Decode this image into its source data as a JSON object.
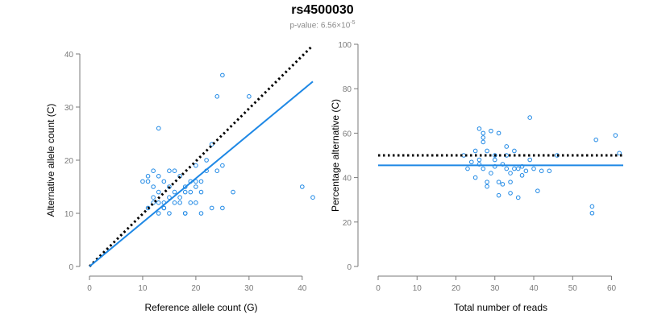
{
  "title": "rs4500030",
  "subtitle": {
    "prefix": "p-value: 6.56×10",
    "exponent": "-5"
  },
  "colors": {
    "points": "#1e88e5",
    "fit_line": "#1e88e5",
    "reference_line": "#000000",
    "axis": "#7a7a7a"
  },
  "chart_data": [
    {
      "type": "scatter",
      "title": "",
      "xlabel": "Reference allele count (G)",
      "ylabel": "Alternative allele count (C)",
      "xlim": [
        0,
        42
      ],
      "ylim": [
        0,
        40
      ],
      "xticks": [
        0,
        10,
        20,
        30,
        40
      ],
      "yticks": [
        0,
        10,
        20,
        30,
        40
      ],
      "points": {
        "x": [
          13,
          24,
          25,
          30,
          10,
          11,
          11,
          12,
          12,
          13,
          13,
          14,
          15,
          15,
          16,
          16,
          17,
          17,
          18,
          18,
          19,
          19,
          20,
          20,
          20,
          21,
          21,
          22,
          23,
          24,
          25,
          13,
          14,
          15,
          16,
          18,
          12,
          13,
          14,
          15,
          17,
          18,
          19,
          20,
          21,
          22,
          23,
          25,
          27,
          40,
          42,
          11,
          12,
          14
        ],
        "y": [
          26,
          32,
          36,
          32,
          16,
          16,
          17,
          15,
          18,
          17,
          14,
          16,
          18,
          15,
          18,
          14,
          17,
          13,
          15,
          14,
          16,
          12,
          19,
          15,
          16,
          14,
          16,
          18,
          23,
          18,
          19,
          12,
          11,
          13,
          12,
          10,
          13,
          10,
          12,
          10,
          12,
          10,
          14,
          12,
          10,
          20,
          11,
          11,
          14,
          15,
          13,
          11,
          12,
          11
        ]
      },
      "lines": [
        {
          "name": "expected",
          "style": "dotted",
          "color": "#000000",
          "x": [
            0,
            42
          ],
          "y": [
            0,
            41.6
          ]
        },
        {
          "name": "fit",
          "style": "solid",
          "color": "#1e88e5",
          "x": [
            0,
            42
          ],
          "y": [
            0,
            34.8
          ]
        }
      ]
    },
    {
      "type": "scatter",
      "title": "",
      "xlabel": "Total number of reads",
      "ylabel": "Percentage alternative (C)",
      "xlim": [
        0,
        63
      ],
      "ylim": [
        0,
        100
      ],
      "xticks": [
        0,
        10,
        20,
        30,
        40,
        50,
        60
      ],
      "yticks": [
        0,
        20,
        40,
        60,
        80,
        100
      ],
      "points": {
        "x": [
          22,
          23,
          24,
          25,
          25,
          26,
          26,
          27,
          27,
          27,
          28,
          28,
          28,
          29,
          29,
          30,
          30,
          31,
          31,
          31,
          32,
          32,
          33,
          33,
          33,
          34,
          34,
          34,
          35,
          35,
          36,
          36,
          37,
          37,
          38,
          39,
          39,
          40,
          41,
          42,
          44,
          46,
          55,
          55,
          56,
          61,
          62,
          30,
          27,
          26
        ],
        "y": [
          50,
          44,
          47,
          40,
          52,
          48,
          62,
          44,
          56,
          60,
          38,
          52,
          36,
          61,
          42,
          50,
          45,
          38,
          60,
          32,
          46,
          37,
          44,
          50,
          54,
          42,
          33,
          38,
          44,
          52,
          44,
          31,
          45,
          41,
          43,
          67,
          48,
          44,
          34,
          43,
          43,
          50,
          27,
          24,
          57,
          59,
          51,
          48,
          58,
          46
        ]
      },
      "lines": [
        {
          "name": "expected",
          "style": "dotted",
          "color": "#000000",
          "x": [
            0,
            63
          ],
          "y": [
            50,
            50
          ]
        },
        {
          "name": "fit",
          "style": "solid",
          "color": "#1e88e5",
          "x": [
            0,
            63
          ],
          "y": [
            45.5,
            45.5
          ]
        }
      ]
    }
  ]
}
